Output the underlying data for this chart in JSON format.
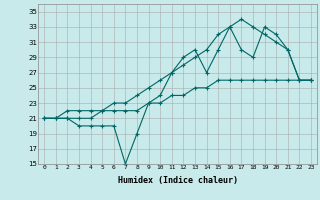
{
  "xlabel": "Humidex (Indice chaleur)",
  "background_color": "#c8eaea",
  "grid_color": "#aaaaaa",
  "line_color": "#006666",
  "xlim": [
    -0.5,
    23.5
  ],
  "ylim": [
    15,
    36
  ],
  "xticks": [
    0,
    1,
    2,
    3,
    4,
    5,
    6,
    7,
    8,
    9,
    10,
    11,
    12,
    13,
    14,
    15,
    16,
    17,
    18,
    19,
    20,
    21,
    22,
    23
  ],
  "yticks": [
    15,
    17,
    19,
    21,
    23,
    25,
    27,
    29,
    31,
    33,
    35
  ],
  "line1_x": [
    0,
    1,
    2,
    3,
    4,
    5,
    6,
    7,
    8,
    9,
    10,
    11,
    12,
    13,
    14,
    15,
    16,
    17,
    18,
    19,
    20,
    21,
    22,
    23
  ],
  "line1_y": [
    21,
    21,
    21,
    20,
    20,
    20,
    20,
    15,
    19,
    23,
    24,
    27,
    29,
    30,
    27,
    30,
    33,
    30,
    29,
    33,
    32,
    30,
    26,
    26
  ],
  "line2_x": [
    0,
    1,
    2,
    3,
    4,
    5,
    6,
    7,
    8,
    9,
    10,
    11,
    12,
    13,
    14,
    15,
    16,
    17,
    18,
    19,
    20,
    21,
    22,
    23
  ],
  "line2_y": [
    21,
    21,
    22,
    22,
    22,
    22,
    23,
    23,
    24,
    25,
    26,
    27,
    28,
    29,
    30,
    32,
    33,
    34,
    33,
    32,
    31,
    30,
    26,
    26
  ],
  "line3_x": [
    0,
    1,
    2,
    3,
    4,
    5,
    6,
    7,
    8,
    9,
    10,
    11,
    12,
    13,
    14,
    15,
    16,
    17,
    18,
    19,
    20,
    21,
    22,
    23
  ],
  "line3_y": [
    21,
    21,
    21,
    21,
    21,
    22,
    22,
    22,
    22,
    23,
    23,
    24,
    24,
    25,
    25,
    26,
    26,
    26,
    26,
    26,
    26,
    26,
    26,
    26
  ]
}
